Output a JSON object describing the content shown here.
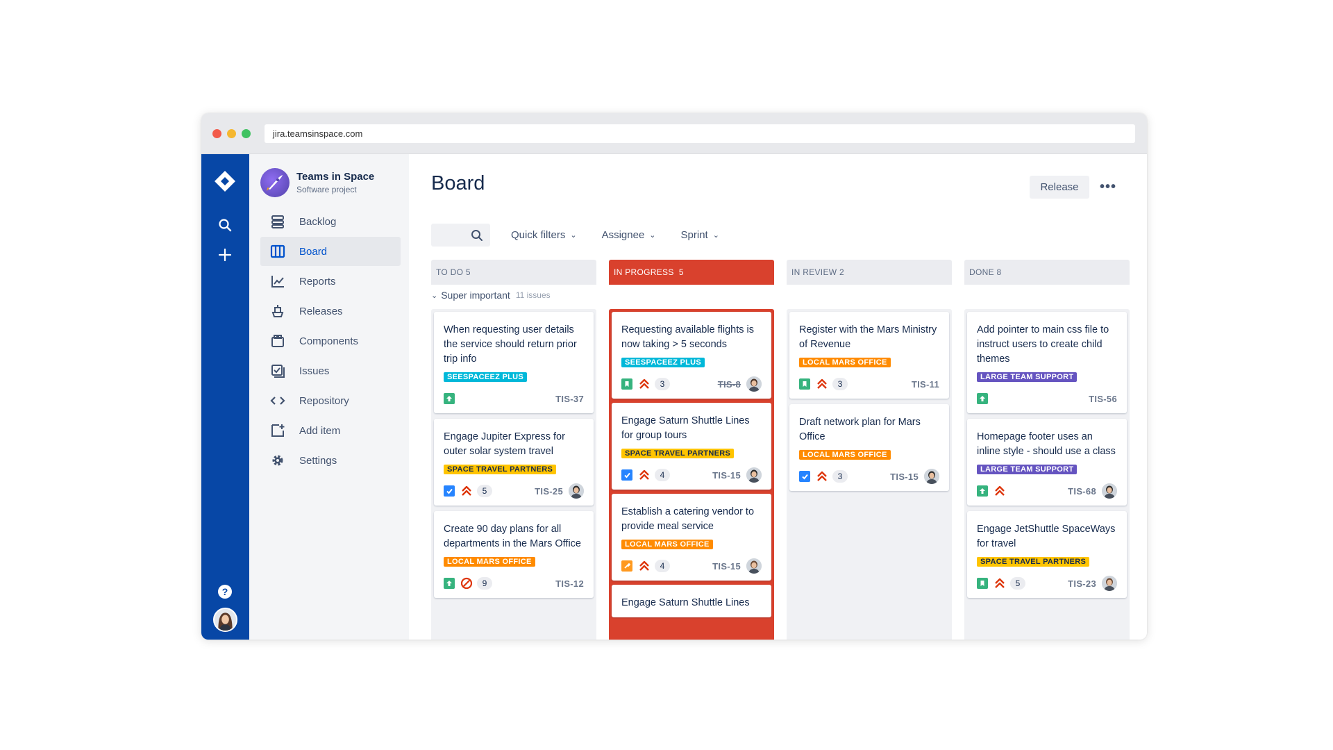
{
  "browser": {
    "url": "jira.teamsinspace.com"
  },
  "project": {
    "name": "Teams in Space",
    "type": "Software project"
  },
  "nav": [
    {
      "label": "Backlog",
      "icon": "backlog-icon"
    },
    {
      "label": "Board",
      "icon": "board-icon",
      "active": true
    },
    {
      "label": "Reports",
      "icon": "reports-icon"
    },
    {
      "label": "Releases",
      "icon": "releases-icon"
    },
    {
      "label": "Components",
      "icon": "components-icon"
    },
    {
      "label": "Issues",
      "icon": "issues-icon"
    },
    {
      "label": "Repository",
      "icon": "repository-icon"
    },
    {
      "label": "Add item",
      "icon": "add-item-icon"
    },
    {
      "label": "Settings",
      "icon": "settings-icon"
    }
  ],
  "header": {
    "title": "Board",
    "release_label": "Release",
    "more_label": "•••"
  },
  "filters": {
    "quick": "Quick filters",
    "assignee": "Assignee",
    "sprint": "Sprint"
  },
  "columns": [
    {
      "title": "TO DO 5"
    },
    {
      "title": "IN PROGRESS  5"
    },
    {
      "title": "IN REVIEW 2"
    },
    {
      "title": "DONE 8"
    }
  ],
  "swimlane": {
    "title": "Super important",
    "count": "11 issues"
  },
  "cards": {
    "todo": [
      {
        "text": "When requesting user details the service should return prior trip info",
        "label": "SEESPACEEZ PLUS",
        "label_color": "cyan",
        "type": "improve",
        "key": "TIS-37"
      },
      {
        "text": "Engage Jupiter Express for outer solar system travel",
        "label": "SPACE TRAVEL PARTNERS",
        "label_color": "yellow",
        "type": "task",
        "priority": "highest",
        "points": "5",
        "key": "TIS-25",
        "avatar": true
      },
      {
        "text": "Create 90 day plans for all departments in the Mars Office",
        "label": "LOCAL MARS OFFICE",
        "label_color": "orange",
        "type": "improve",
        "priority": "blocker",
        "points": "9",
        "key": "TIS-12"
      }
    ],
    "inprogress": [
      {
        "text": "Requesting available flights is now taking > 5 seconds",
        "label": "SEESPACEEZ PLUS",
        "label_color": "cyan",
        "type": "story",
        "priority": "highest",
        "points": "3",
        "key": "TIS-8",
        "key_done": true,
        "avatar": true
      },
      {
        "text": "Engage Saturn Shuttle Lines for group tours",
        "label": "SPACE TRAVEL PARTNERS",
        "label_color": "yellow",
        "type": "task",
        "priority": "highest",
        "points": "4",
        "key": "TIS-15",
        "avatar": true
      },
      {
        "text": "Establish a catering vendor to provide meal service",
        "label": "LOCAL MARS OFFICE",
        "label_color": "orange",
        "type": "bug",
        "priority": "highest",
        "points": "4",
        "key": "TIS-15",
        "avatar": true
      },
      {
        "text": "Engage Saturn Shuttle Lines"
      }
    ],
    "inreview": [
      {
        "text": "Register with the Mars Ministry of Revenue",
        "label": "LOCAL MARS OFFICE",
        "label_color": "orange",
        "type": "story",
        "priority": "highest",
        "points": "3",
        "key": "TIS-11"
      },
      {
        "text": "Draft network plan for Mars Office",
        "label": "LOCAL MARS OFFICE",
        "label_color": "orange",
        "type": "task",
        "priority": "highest",
        "points": "3",
        "key": "TIS-15",
        "avatar": true
      }
    ],
    "done": [
      {
        "text": "Add pointer to main css file to instruct users to create child themes",
        "label": "LARGE TEAM SUPPORT",
        "label_color": "purple",
        "type": "improve",
        "key": "TIS-56"
      },
      {
        "text": "Homepage footer uses an inline style - should use a class",
        "label": "LARGE TEAM SUPPORT",
        "label_color": "purple",
        "type": "improve",
        "priority": "highest",
        "key": "TIS-68",
        "avatar": true
      },
      {
        "text": "Engage JetShuttle SpaceWays for travel",
        "label": "SPACE TRAVEL PARTNERS",
        "label_color": "yellow",
        "type": "story",
        "priority": "highest",
        "points": "5",
        "key": "TIS-23",
        "avatar": true
      }
    ]
  }
}
